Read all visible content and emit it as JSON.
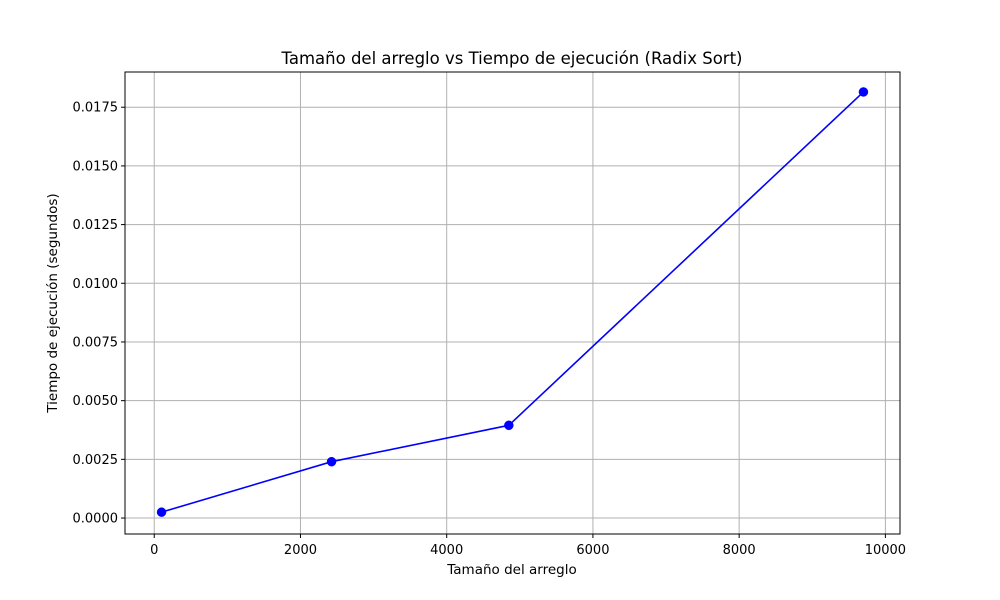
{
  "chart_data": {
    "type": "line",
    "title": "Tamaño del arreglo vs Tiempo de ejecución (Radix Sort)",
    "xlabel": "Tamaño del arreglo",
    "ylabel": "Tiempo de ejecución (segundos)",
    "xlim": [
      -400,
      10200
    ],
    "ylim": [
      -0.00068,
      0.019
    ],
    "x_ticks": [
      0,
      2000,
      4000,
      6000,
      8000,
      10000
    ],
    "x_tick_labels": [
      "0",
      "2000",
      "4000",
      "6000",
      "8000",
      "10000"
    ],
    "y_ticks": [
      0.0,
      0.0025,
      0.005,
      0.0075,
      0.01,
      0.0125,
      0.015,
      0.0175
    ],
    "y_tick_labels": [
      "0.0000",
      "0.0025",
      "0.0050",
      "0.0075",
      "0.0100",
      "0.0125",
      "0.0150",
      "0.0175"
    ],
    "grid": true,
    "series": [
      {
        "color": "#0000ff",
        "marker": "circle",
        "x": [
          100,
          2425,
          4850,
          9700
        ],
        "y": [
          0.00025,
          0.0024,
          0.00395,
          0.01815
        ]
      }
    ]
  }
}
